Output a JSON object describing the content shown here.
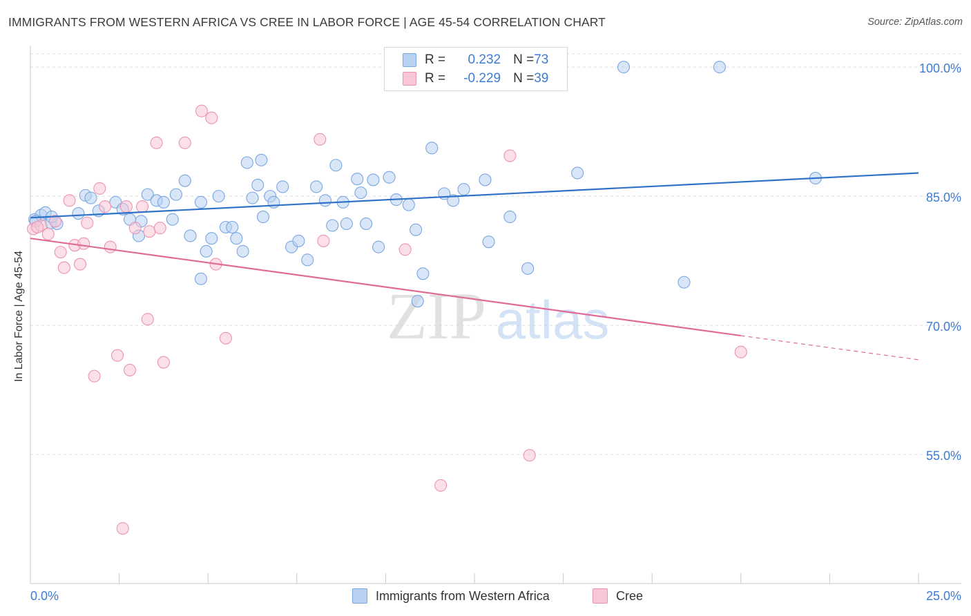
{
  "title": "IMMIGRANTS FROM WESTERN AFRICA VS CREE IN LABOR FORCE | AGE 45-54 CORRELATION CHART",
  "source": "Source: ZipAtlas.com",
  "watermark": "ZIPatlas",
  "colors": {
    "blue_fill": "#b9d2f3",
    "blue_stroke": "#7aa6e0",
    "blue_line": "#2f72c8",
    "pink_fill": "#f8c6d6",
    "pink_stroke": "#eb94b0",
    "pink_line": "#e06b96",
    "axis_text": "#3d7bd4",
    "grid": "#dcdcdc"
  },
  "legend": {
    "rows": [
      {
        "r_label": "R = ",
        "r_value": " 0.232",
        "n_label": "N = ",
        "n_value": "73"
      },
      {
        "r_label": "R = ",
        "r_value": "-0.229",
        "n_label": "N = ",
        "n_value": "39"
      }
    ]
  },
  "bottom_legend": [
    "Immigrants from Western Africa",
    "Cree"
  ],
  "chart_data": {
    "type": "scatter",
    "title": "IMMIGRANTS FROM WESTERN AFRICA VS CREE IN LABOR FORCE | AGE 45-54 CORRELATION CHART",
    "xlabel": "",
    "ylabel": "In Labor Force | Age 45-54",
    "xlim": [
      0,
      25
    ],
    "ylim": [
      40,
      102.5
    ],
    "x_tick_labels": [
      "0.0%",
      "25.0%"
    ],
    "y_ticks": [
      55,
      70,
      85,
      100
    ],
    "y_tick_labels": [
      "55.0%",
      "70.0%",
      "85.0%",
      "100.0%"
    ],
    "grid": true,
    "legend_position": "top-center",
    "series": [
      {
        "name": "Immigrants from Western Africa",
        "color": "#b9d2f3",
        "r": 0.232,
        "n": 73,
        "trend": {
          "x": [
            0,
            25
          ],
          "y": [
            82.5,
            87.7
          ]
        },
        "points": [
          [
            0.12,
            82.3
          ],
          [
            0.3,
            82.8
          ],
          [
            0.42,
            83.1
          ],
          [
            0.58,
            81.9
          ],
          [
            0.75,
            81.8
          ],
          [
            1.35,
            83.0
          ],
          [
            1.55,
            85.1
          ],
          [
            1.7,
            84.8
          ],
          [
            1.92,
            83.3
          ],
          [
            2.4,
            84.3
          ],
          [
            2.6,
            83.5
          ],
          [
            2.8,
            82.3
          ],
          [
            3.05,
            80.4
          ],
          [
            3.12,
            82.1
          ],
          [
            3.3,
            85.2
          ],
          [
            3.55,
            84.5
          ],
          [
            3.75,
            84.3
          ],
          [
            4.0,
            82.3
          ],
          [
            4.1,
            85.2
          ],
          [
            4.35,
            86.8
          ],
          [
            4.5,
            80.4
          ],
          [
            4.8,
            84.3
          ],
          [
            4.8,
            75.4
          ],
          [
            4.95,
            78.6
          ],
          [
            5.1,
            80.1
          ],
          [
            5.3,
            85.0
          ],
          [
            5.5,
            81.4
          ],
          [
            5.98,
            78.6
          ],
          [
            5.68,
            81.4
          ],
          [
            5.8,
            80.1
          ],
          [
            6.1,
            88.9
          ],
          [
            6.25,
            84.8
          ],
          [
            6.4,
            86.3
          ],
          [
            6.5,
            89.2
          ],
          [
            6.55,
            82.6
          ],
          [
            6.75,
            85.0
          ],
          [
            6.85,
            84.3
          ],
          [
            7.1,
            86.1
          ],
          [
            7.35,
            79.1
          ],
          [
            7.55,
            79.8
          ],
          [
            7.8,
            77.6
          ],
          [
            8.05,
            86.1
          ],
          [
            8.3,
            84.5
          ],
          [
            8.5,
            81.6
          ],
          [
            8.6,
            88.6
          ],
          [
            8.8,
            84.3
          ],
          [
            8.9,
            81.8
          ],
          [
            9.2,
            87.0
          ],
          [
            9.3,
            85.4
          ],
          [
            9.45,
            81.8
          ],
          [
            9.8,
            79.1
          ],
          [
            9.65,
            86.9
          ],
          [
            10.1,
            87.2
          ],
          [
            10.3,
            84.6
          ],
          [
            10.65,
            84.0
          ],
          [
            10.85,
            81.1
          ],
          [
            10.9,
            72.8
          ],
          [
            11.05,
            76.0
          ],
          [
            11.3,
            90.6
          ],
          [
            11.65,
            85.3
          ],
          [
            11.9,
            84.5
          ],
          [
            12.2,
            85.8
          ],
          [
            12.8,
            86.9
          ],
          [
            12.9,
            79.7
          ],
          [
            13.5,
            82.6
          ],
          [
            14.0,
            76.6
          ],
          [
            15.4,
            87.7
          ],
          [
            16.7,
            100.0
          ],
          [
            18.4,
            75.0
          ],
          [
            19.4,
            100.0
          ],
          [
            22.1,
            87.1
          ],
          [
            0.15,
            82.1
          ],
          [
            0.6,
            82.6
          ]
        ]
      },
      {
        "name": "Cree",
        "color": "#f8c6d6",
        "r": -0.229,
        "n": 39,
        "trend": {
          "x": [
            0,
            20
          ],
          "y": [
            80.1,
            68.8
          ]
        },
        "trend_dashed": {
          "x": [
            20,
            25
          ],
          "y": [
            68.8,
            66.0
          ]
        },
        "points": [
          [
            0.08,
            81.2
          ],
          [
            0.3,
            81.6
          ],
          [
            0.5,
            80.6
          ],
          [
            0.7,
            82.1
          ],
          [
            0.85,
            78.5
          ],
          [
            0.95,
            76.7
          ],
          [
            1.1,
            84.5
          ],
          [
            1.25,
            79.3
          ],
          [
            1.4,
            77.1
          ],
          [
            1.5,
            79.5
          ],
          [
            1.6,
            81.9
          ],
          [
            1.8,
            64.1
          ],
          [
            1.95,
            85.9
          ],
          [
            2.1,
            83.8
          ],
          [
            2.25,
            79.1
          ],
          [
            2.45,
            66.5
          ],
          [
            2.6,
            46.4
          ],
          [
            2.7,
            83.8
          ],
          [
            2.8,
            64.8
          ],
          [
            2.95,
            81.3
          ],
          [
            3.15,
            83.8
          ],
          [
            3.3,
            70.7
          ],
          [
            3.35,
            80.9
          ],
          [
            3.55,
            91.2
          ],
          [
            3.65,
            81.3
          ],
          [
            3.75,
            65.7
          ],
          [
            4.35,
            91.2
          ],
          [
            4.82,
            94.9
          ],
          [
            5.1,
            94.1
          ],
          [
            5.22,
            77.1
          ],
          [
            5.5,
            68.5
          ],
          [
            8.15,
            91.6
          ],
          [
            8.25,
            79.8
          ],
          [
            10.55,
            78.8
          ],
          [
            11.55,
            51.4
          ],
          [
            13.5,
            89.7
          ],
          [
            14.05,
            54.9
          ],
          [
            20.0,
            66.9
          ],
          [
            0.2,
            81.4
          ]
        ]
      }
    ]
  }
}
